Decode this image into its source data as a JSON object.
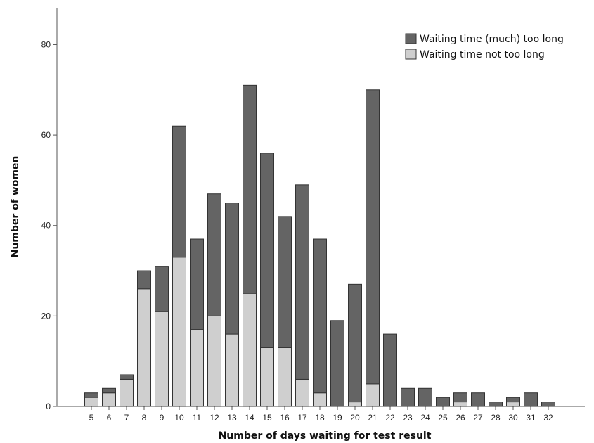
{
  "chart_data": {
    "type": "bar",
    "stacked": true,
    "xlabel": "Number of days waiting for test result",
    "ylabel": "Number of women",
    "ylim": [
      0,
      88
    ],
    "yticks": [
      0,
      20,
      40,
      60,
      80
    ],
    "grid": false,
    "legend_position": "top-right",
    "categories": [
      "5",
      "6",
      "7",
      "8",
      "9",
      "10",
      "11",
      "12",
      "13",
      "14",
      "15",
      "16",
      "17",
      "18",
      "19",
      "20",
      "21",
      "22",
      "23",
      "24",
      "25",
      "26",
      "27",
      "28",
      "30",
      "31",
      "32"
    ],
    "series": [
      {
        "name": "Waiting time not too long",
        "color": "#cfcfcf",
        "values": [
          2,
          3,
          6,
          26,
          21,
          33,
          17,
          20,
          16,
          25,
          13,
          13,
          6,
          3,
          0,
          1,
          5,
          0,
          0,
          0,
          0,
          1,
          0,
          0,
          1,
          0,
          0
        ]
      },
      {
        "name": "Waiting time (much) too long",
        "color": "#646464",
        "values": [
          1,
          1,
          1,
          4,
          10,
          29,
          20,
          27,
          29,
          46,
          43,
          29,
          43,
          34,
          19,
          26,
          65,
          16,
          4,
          4,
          2,
          2,
          3,
          1,
          1,
          3,
          1
        ]
      }
    ],
    "totals": [
      3,
      4,
      7,
      30,
      31,
      62,
      37,
      47,
      45,
      71,
      56,
      42,
      49,
      37,
      19,
      27,
      70,
      16,
      4,
      4,
      2,
      3,
      3,
      1,
      2,
      3,
      1
    ],
    "legend_order": [
      "Waiting time (much) too long",
      "Waiting time not too long"
    ]
  }
}
